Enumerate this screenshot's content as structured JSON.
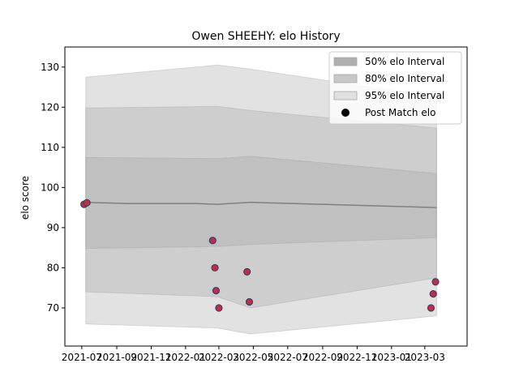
{
  "chart_data": {
    "type": "line",
    "title": "Owen SHEEHY: elo History",
    "xlabel": "",
    "ylabel": "elo score",
    "xlim": [
      "2021-06-01",
      "2023-05-15"
    ],
    "ylim": [
      60.5,
      135
    ],
    "x_ticks": [
      "2021-07",
      "2021-09",
      "2021-11",
      "2022-01",
      "2022-03",
      "2022-05",
      "2022-07",
      "2022-09",
      "2022-11",
      "2023-01",
      "2023-03"
    ],
    "y_ticks": [
      70,
      80,
      90,
      100,
      110,
      120,
      130
    ],
    "legend_position": "top-right",
    "legend": [
      {
        "label": "50% elo Interval",
        "kind": "patch",
        "color": "#b0b0b0"
      },
      {
        "label": "80% elo Interval",
        "kind": "patch",
        "color": "#c8c8c8"
      },
      {
        "label": "95% elo Interval",
        "kind": "patch",
        "color": "#e0e0e0"
      },
      {
        "label": "Post Match elo",
        "kind": "marker",
        "color": "#000000"
      }
    ],
    "bands": {
      "x": [
        "2021-07-08",
        "2022-02-26",
        "2022-04-26",
        "2023-03-22"
      ],
      "interval_95": {
        "lower": [
          66,
          65,
          63.5,
          68
        ],
        "upper": [
          127.5,
          130.5,
          129.5,
          122.5
        ]
      },
      "interval_80": {
        "lower": [
          74,
          72.8,
          70,
          77.5
        ],
        "upper": [
          119.8,
          120.2,
          119.2,
          114.8
        ]
      },
      "interval_50": {
        "lower": [
          84.8,
          85.3,
          85.8,
          87.5
        ],
        "upper": [
          107.5,
          107.2,
          107.8,
          103.5
        ]
      }
    },
    "mean_line": {
      "x": [
        "2021-07-08",
        "2021-09-20",
        "2022-01-20",
        "2022-02-26",
        "2022-04-26",
        "2022-09-01",
        "2023-03-22"
      ],
      "y": [
        96.3,
        96.0,
        96.0,
        95.8,
        96.3,
        95.8,
        95.0
      ],
      "color": "#808080"
    },
    "series": [
      {
        "name": "Post Match elo",
        "marker_color": "#c0303a",
        "edge_color": "#3a3a7a",
        "points": [
          {
            "x": "2021-07-05",
            "y": 95.8
          },
          {
            "x": "2021-07-10",
            "y": 96.2
          },
          {
            "x": "2022-02-18",
            "y": 86.8
          },
          {
            "x": "2022-02-22",
            "y": 80.0
          },
          {
            "x": "2022-02-24",
            "y": 74.3
          },
          {
            "x": "2022-03-01",
            "y": 70.0
          },
          {
            "x": "2022-04-20",
            "y": 79.0
          },
          {
            "x": "2022-04-24",
            "y": 71.5
          },
          {
            "x": "2023-03-12",
            "y": 70.0
          },
          {
            "x": "2023-03-16",
            "y": 73.5
          },
          {
            "x": "2023-03-20",
            "y": 76.5
          }
        ]
      }
    ]
  }
}
